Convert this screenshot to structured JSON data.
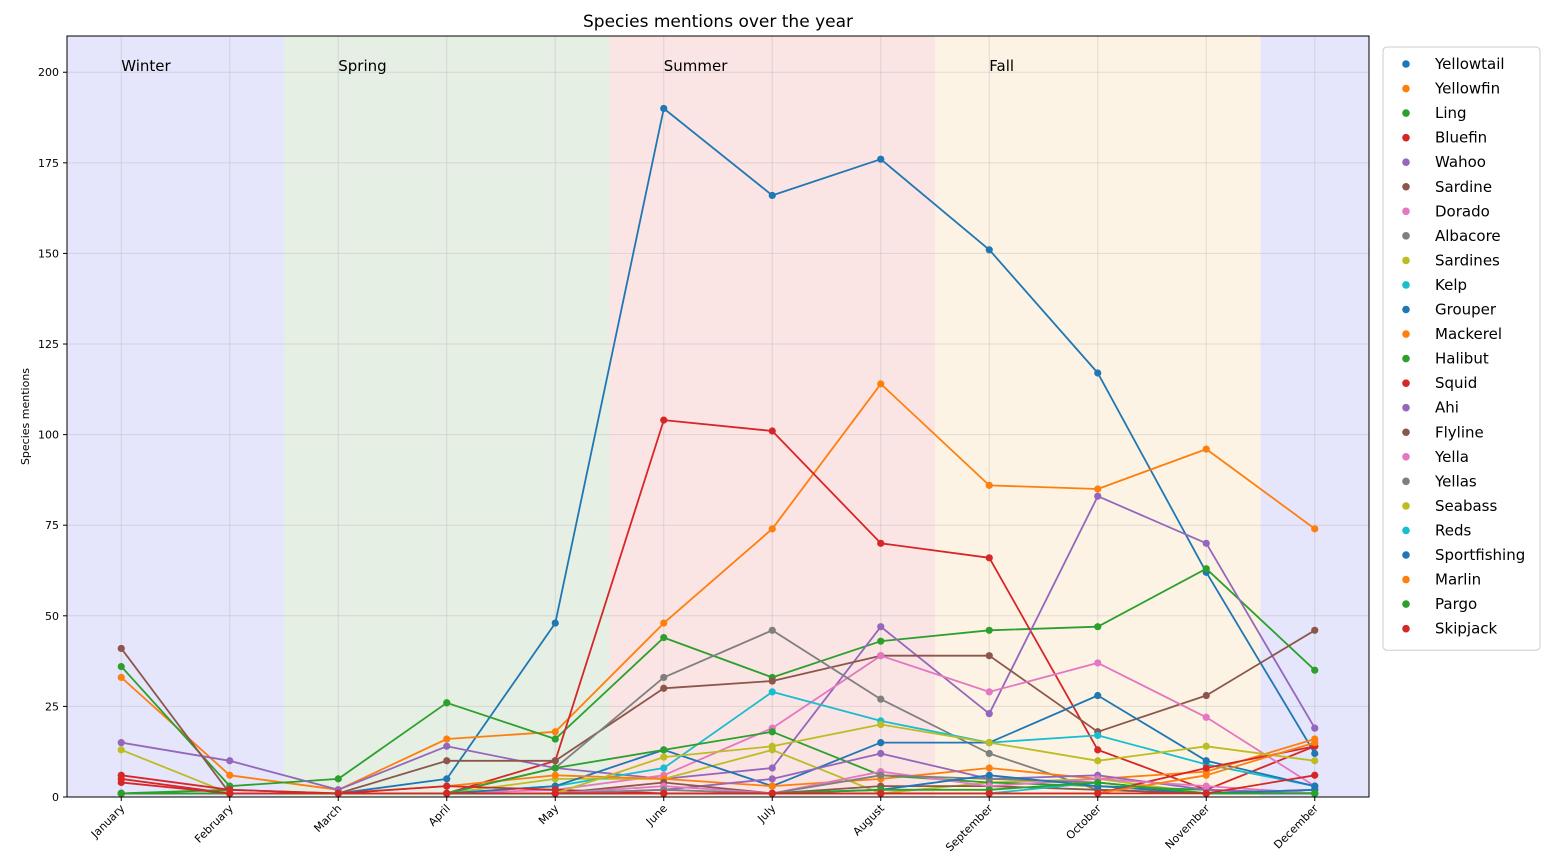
{
  "chart_data": {
    "type": "line",
    "title": "Species mentions over the year",
    "xlabel": "",
    "ylabel": "Species mentions",
    "ylim": [
      0,
      210
    ],
    "yticks": [
      0,
      25,
      50,
      75,
      100,
      125,
      150,
      175,
      200
    ],
    "grid": true,
    "legend_position": "outside-right",
    "categories": [
      "January",
      "February",
      "March",
      "April",
      "May",
      "June",
      "July",
      "August",
      "September",
      "October",
      "November",
      "December"
    ],
    "seasons": [
      {
        "name": "Winter",
        "label_at": 0,
        "color": "#e5e5fb"
      },
      {
        "name": "Spring",
        "label_at": 2,
        "color": "#e6efe4"
      },
      {
        "name": "Summer",
        "label_at": 5,
        "color": "#fbe4e4"
      },
      {
        "name": "Fall",
        "label_at": 8,
        "color": "#fdf3e4"
      }
    ],
    "season_bands": [
      {
        "season": "Winter",
        "from": -0.5,
        "to": 1.5
      },
      {
        "season": "Spring",
        "from": 1.5,
        "to": 4.5
      },
      {
        "season": "Summer",
        "from": 4.5,
        "to": 7.5
      },
      {
        "season": "Fall",
        "from": 7.5,
        "to": 10.5
      },
      {
        "season": "Winter",
        "from": 10.5,
        "to": 11.5
      }
    ],
    "series": [
      {
        "name": "Yellowtail",
        "color": "#1f77b4",
        "values": [
          1,
          1,
          1,
          5,
          48,
          190,
          166,
          176,
          151,
          117,
          62,
          12
        ]
      },
      {
        "name": "Yellowfin",
        "color": "#ff7f0e",
        "values": [
          33,
          6,
          2,
          16,
          18,
          48,
          74,
          114,
          86,
          85,
          96,
          74
        ]
      },
      {
        "name": "Ling",
        "color": "#2ca02c",
        "values": [
          36,
          3,
          5,
          26,
          16,
          44,
          33,
          43,
          46,
          47,
          63,
          35
        ]
      },
      {
        "name": "Bluefin",
        "color": "#d62728",
        "values": [
          5,
          1,
          1,
          1,
          10,
          104,
          101,
          70,
          66,
          13,
          2,
          14
        ]
      },
      {
        "name": "Wahoo",
        "color": "#9467bd",
        "values": [
          15,
          10,
          2,
          14,
          8,
          5,
          8,
          47,
          23,
          83,
          70,
          19
        ]
      },
      {
        "name": "Sardine",
        "color": "#8c564b",
        "values": [
          41,
          1,
          1,
          10,
          10,
          30,
          32,
          39,
          39,
          18,
          28,
          46
        ]
      },
      {
        "name": "Dorado",
        "color": "#e377c2",
        "values": [
          1,
          1,
          1,
          1,
          2,
          6,
          19,
          39,
          29,
          37,
          22,
          3
        ]
      },
      {
        "name": "Albacore",
        "color": "#7f7f7f",
        "values": [
          1,
          1,
          1,
          1,
          8,
          33,
          46,
          27,
          12,
          2,
          1,
          2
        ]
      },
      {
        "name": "Sardines",
        "color": "#bcbd22",
        "values": [
          13,
          1,
          1,
          1,
          5,
          5,
          13,
          1,
          4,
          5,
          1,
          1
        ]
      },
      {
        "name": "Kelp",
        "color": "#17becf",
        "values": [
          1,
          1,
          1,
          1,
          3,
          8,
          29,
          21,
          15,
          17,
          9,
          3
        ]
      },
      {
        "name": "Grouper",
        "color": "#1f77b4",
        "values": [
          1,
          1,
          1,
          1,
          3,
          13,
          3,
          15,
          15,
          28,
          10,
          3
        ]
      },
      {
        "name": "Mackerel",
        "color": "#ff7f0e",
        "values": [
          1,
          1,
          1,
          3,
          6,
          5,
          3,
          5,
          8,
          5,
          7,
          16
        ]
      },
      {
        "name": "Halibut",
        "color": "#2ca02c",
        "values": [
          1,
          2,
          1,
          1,
          8,
          13,
          18,
          6,
          4,
          3,
          2,
          1
        ]
      },
      {
        "name": "Squid",
        "color": "#d62728",
        "values": [
          6,
          2,
          1,
          3,
          2,
          1,
          1,
          1,
          1,
          1,
          8,
          14
        ]
      },
      {
        "name": "Ahi",
        "color": "#9467bd",
        "values": [
          1,
          1,
          1,
          1,
          1,
          2,
          5,
          12,
          5,
          6,
          2,
          1
        ]
      },
      {
        "name": "Flyline",
        "color": "#8c564b",
        "values": [
          1,
          1,
          1,
          1,
          1,
          4,
          1,
          3,
          3,
          2,
          1,
          1
        ]
      },
      {
        "name": "Yella",
        "color": "#e377c2",
        "values": [
          1,
          1,
          1,
          1,
          1,
          3,
          1,
          7,
          3,
          5,
          3,
          1
        ]
      },
      {
        "name": "Yellas",
        "color": "#7f7f7f",
        "values": [
          1,
          1,
          1,
          1,
          1,
          2,
          1,
          6,
          5,
          4,
          1,
          1
        ]
      },
      {
        "name": "Seabass",
        "color": "#bcbd22",
        "values": [
          1,
          1,
          1,
          1,
          1,
          11,
          14,
          20,
          15,
          10,
          14,
          10
        ]
      },
      {
        "name": "Reds",
        "color": "#17becf",
        "values": [
          1,
          1,
          1,
          1,
          1,
          1,
          1,
          1,
          1,
          4,
          1,
          1
        ]
      },
      {
        "name": "Sportfishing",
        "color": "#1f77b4",
        "values": [
          1,
          1,
          1,
          1,
          1,
          1,
          1,
          2,
          6,
          3,
          1,
          2
        ]
      },
      {
        "name": "Marlin",
        "color": "#ff7f0e",
        "values": [
          1,
          1,
          1,
          1,
          1,
          1,
          1,
          1,
          1,
          1,
          6,
          15
        ]
      },
      {
        "name": "Pargo",
        "color": "#2ca02c",
        "values": [
          1,
          1,
          1,
          1,
          1,
          1,
          1,
          2,
          2,
          4,
          1,
          1
        ]
      },
      {
        "name": "Skipjack",
        "color": "#d62728",
        "values": [
          4,
          1,
          1,
          1,
          1,
          1,
          1,
          1,
          1,
          1,
          1,
          6
        ]
      }
    ]
  }
}
